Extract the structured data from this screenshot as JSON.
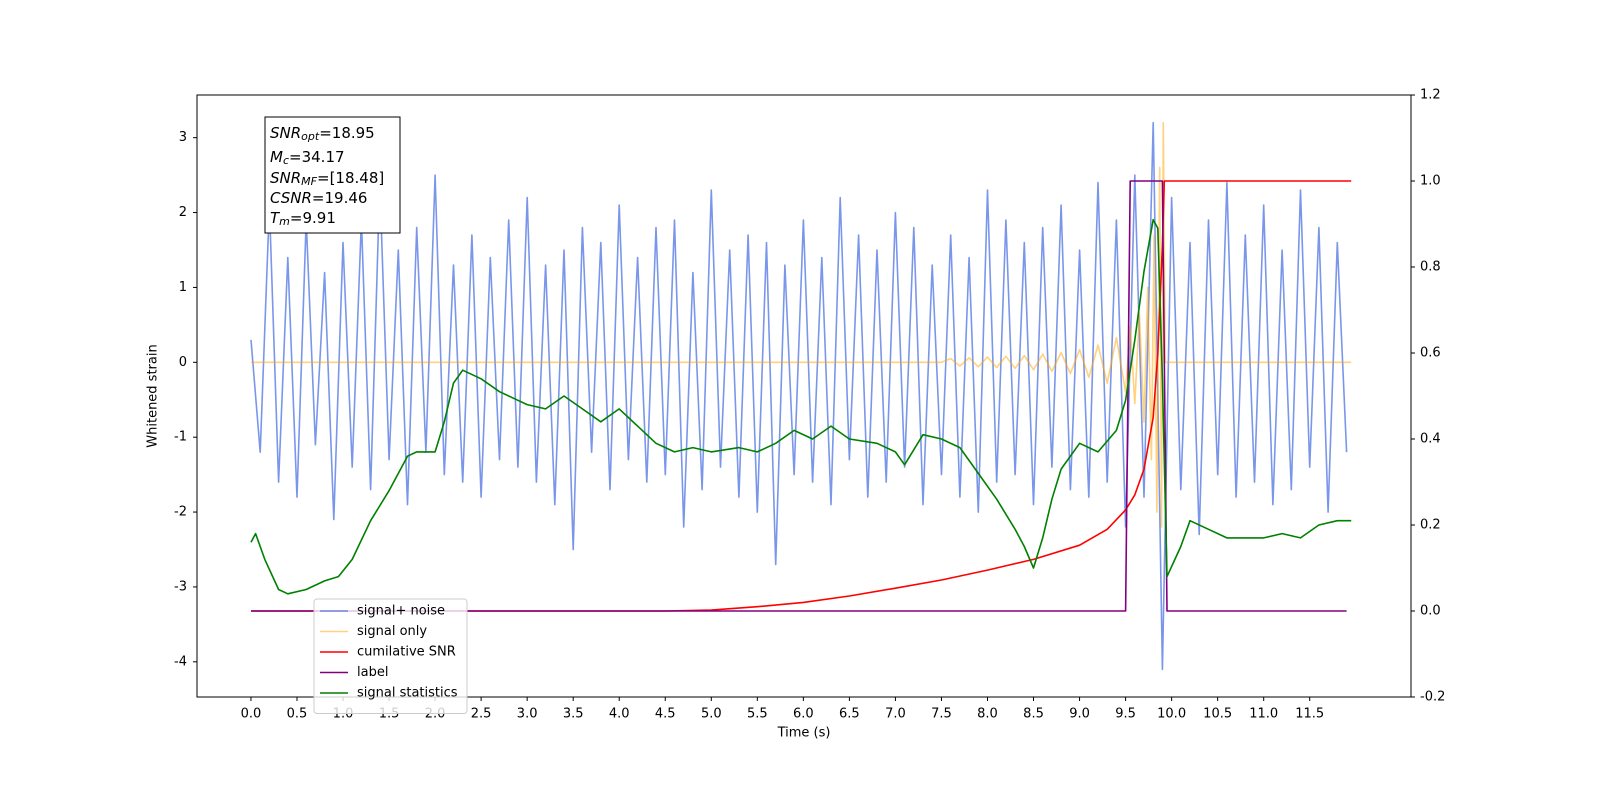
{
  "chart_data": {
    "type": "line",
    "xlabel": "Time (s)",
    "ylabel": "Whitened strain",
    "xlim": [
      -0.586,
      12.6
    ],
    "ylim": [
      -4.47,
      3.57
    ],
    "y2lim": [
      -0.2,
      1.2
    ],
    "xticks": [
      {
        "value": 0,
        "label": "0.0"
      },
      0.5,
      {
        "value": 1,
        "label": "1.0"
      },
      1.5,
      {
        "value": 2,
        "label": "2.0"
      },
      2.5,
      {
        "value": 3,
        "label": "3.0"
      },
      3.5,
      {
        "value": 4,
        "label": "4.0"
      },
      4.5,
      {
        "value": 5,
        "label": "5.0"
      },
      5.5,
      {
        "value": 6,
        "label": "6.0"
      },
      6.5,
      {
        "value": 7,
        "label": "7.0"
      },
      7.5,
      {
        "value": 8,
        "label": "8.0"
      },
      8.5,
      {
        "value": 9,
        "label": "9.0"
      },
      9.5,
      {
        "value": 10,
        "label": "10.0"
      },
      10.5,
      {
        "value": 11,
        "label": "11.0"
      },
      11.5
    ],
    "yticks": [
      -4,
      -3,
      -2,
      -1,
      0,
      1,
      2,
      3
    ],
    "y2ticks": [
      -0.2,
      {
        "value": 0,
        "label": "0.0"
      },
      0.2,
      0.4,
      0.6,
      0.8,
      {
        "value": 1,
        "label": "1.0"
      },
      1.2
    ],
    "legend": "lower left",
    "annotations": [
      {
        "name": "SNR",
        "sub": "opt",
        "text": "=18.95"
      },
      {
        "name": "M",
        "sub": "c",
        "text": "=34.17"
      },
      {
        "name": "SNR",
        "sub": "MF",
        "text": "=[18.48]"
      },
      {
        "name": "CSNR",
        "text": "=19.46"
      },
      {
        "name": "T",
        "sub": "m",
        "text": "=9.91"
      }
    ],
    "series": [
      {
        "name": "signal+ noise",
        "color": "#4169e1",
        "alpha": 0.7,
        "x": [
          0,
          0.1,
          0.2,
          0.3,
          0.4,
          0.5,
          0.6,
          0.7,
          0.8,
          0.9,
          1,
          1.1,
          1.2,
          1.3,
          1.4,
          1.5,
          1.6,
          1.7,
          1.8,
          1.9,
          2,
          2.1,
          2.2,
          2.3,
          2.4,
          2.5,
          2.6,
          2.7,
          2.8,
          2.9,
          3,
          3.1,
          3.2,
          3.3,
          3.4,
          3.5,
          3.6,
          3.7,
          3.8,
          3.9,
          4,
          4.1,
          4.2,
          4.3,
          4.4,
          4.5,
          4.6,
          4.7,
          4.8,
          4.9,
          5,
          5.1,
          5.2,
          5.3,
          5.4,
          5.5,
          5.6,
          5.7,
          5.8,
          5.9,
          6,
          6.1,
          6.2,
          6.3,
          6.4,
          6.5,
          6.6,
          6.7,
          6.8,
          6.9,
          7,
          7.1,
          7.2,
          7.3,
          7.4,
          7.5,
          7.6,
          7.7,
          7.8,
          7.9,
          8,
          8.1,
          8.2,
          8.3,
          8.4,
          8.5,
          8.6,
          8.7,
          8.8,
          8.9,
          9,
          9.1,
          9.2,
          9.3,
          9.4,
          9.5,
          9.6,
          9.7,
          9.8,
          9.9,
          10,
          10.1,
          10.2,
          10.3,
          10.4,
          10.5,
          10.6,
          10.7,
          10.8,
          10.9,
          11,
          11.1,
          11.2,
          11.3,
          11.4,
          11.5,
          11.6,
          11.7,
          11.8,
          11.9
        ],
        "values": [
          0.3,
          -1.2,
          2.1,
          -1.6,
          1.4,
          -1.8,
          1.9,
          -1.1,
          1.2,
          -2.1,
          1.6,
          -1.4,
          1.9,
          -1.7,
          2.4,
          -1.3,
          1.5,
          -1.9,
          1.8,
          -1.2,
          2.5,
          -1.5,
          1.3,
          -1.6,
          1.7,
          -1.8,
          1.4,
          -1.3,
          1.9,
          -1.4,
          2.2,
          -1.6,
          1.3,
          -1.9,
          1.5,
          -2.5,
          1.8,
          -1.2,
          1.6,
          -1.7,
          2.1,
          -1.3,
          1.4,
          -1.6,
          1.8,
          -1.5,
          1.9,
          -2.2,
          1.2,
          -1.7,
          2.3,
          -1.4,
          1.5,
          -1.8,
          1.7,
          -2.0,
          1.6,
          -2.7,
          1.3,
          -1.5,
          1.9,
          -1.6,
          1.4,
          -1.9,
          2.2,
          -1.3,
          1.7,
          -1.8,
          1.5,
          -1.6,
          2.0,
          -1.4,
          1.8,
          -1.9,
          1.3,
          -1.5,
          1.7,
          -1.8,
          1.4,
          -2.0,
          2.3,
          -1.6,
          1.9,
          -1.5,
          1.6,
          -1.9,
          1.8,
          -1.4,
          2.1,
          -1.7,
          1.5,
          -1.8,
          2.4,
          -1.6,
          1.9,
          -2.2,
          2.5,
          -1.8,
          3.2,
          -4.1,
          2.2,
          -1.7,
          1.6,
          -2.3,
          1.9,
          -1.5,
          2.4,
          -1.8,
          1.7,
          -1.6,
          2.1,
          -1.9,
          1.5,
          -1.7,
          2.3,
          -1.4,
          1.8,
          -2.0,
          1.6,
          -1.2
        ]
      },
      {
        "name": "signal only",
        "color": "#ffa500",
        "alpha": 0.5,
        "x": [
          0,
          7.5,
          7.6,
          7.7,
          7.8,
          7.9,
          8,
          8.1,
          8.2,
          8.3,
          8.4,
          8.5,
          8.6,
          8.7,
          8.8,
          8.9,
          9,
          9.1,
          9.2,
          9.3,
          9.4,
          9.5,
          9.55,
          9.6,
          9.65,
          9.7,
          9.74,
          9.78,
          9.81,
          9.84,
          9.87,
          9.89,
          9.91,
          9.93,
          11.95
        ],
        "values": [
          0,
          0,
          0.05,
          -0.05,
          0.06,
          -0.06,
          0.07,
          -0.07,
          0.08,
          -0.08,
          0.09,
          -0.1,
          0.11,
          -0.12,
          0.13,
          -0.15,
          0.17,
          -0.2,
          0.23,
          -0.28,
          0.33,
          -0.4,
          0.48,
          -0.55,
          0.65,
          -0.8,
          1.0,
          -1.3,
          1.7,
          -2.0,
          2.6,
          -2.2,
          3.2,
          0,
          0
        ]
      },
      {
        "name": "cumilative SNR",
        "color": "#ff0000",
        "axis": "y2",
        "x": [
          0,
          4.5,
          5,
          5.5,
          6,
          6.5,
          7,
          7.5,
          8,
          8.5,
          9,
          9.3,
          9.5,
          9.6,
          9.7,
          9.8,
          9.85,
          9.9,
          9.92,
          11.95
        ],
        "values": [
          0,
          0,
          0.002,
          0.01,
          0.02,
          0.035,
          0.053,
          0.072,
          0.095,
          0.12,
          0.153,
          0.19,
          0.235,
          0.27,
          0.33,
          0.45,
          0.6,
          0.85,
          1.0,
          1.0
        ]
      },
      {
        "name": "label",
        "color": "#800080",
        "axis": "y2",
        "x": [
          0,
          9.5,
          9.55,
          9.9,
          9.95,
          11.9
        ],
        "values": [
          0,
          0,
          1,
          1,
          0,
          0
        ]
      },
      {
        "name": "signal statistics",
        "color": "#008000",
        "axis": "y2",
        "x": [
          0,
          0.05,
          0.15,
          0.3,
          0.4,
          0.6,
          0.8,
          0.95,
          1.1,
          1.3,
          1.5,
          1.7,
          1.8,
          2.0,
          2.1,
          2.2,
          2.3,
          2.5,
          2.7,
          2.9,
          3.0,
          3.2,
          3.4,
          3.6,
          3.8,
          4.0,
          4.2,
          4.4,
          4.6,
          4.8,
          5.0,
          5.3,
          5.5,
          5.7,
          5.9,
          6.1,
          6.3,
          6.5,
          6.8,
          7.0,
          7.1,
          7.3,
          7.5,
          7.7,
          7.9,
          8.1,
          8.3,
          8.4,
          8.5,
          8.6,
          8.7,
          8.8,
          9.0,
          9.2,
          9.4,
          9.5,
          9.6,
          9.7,
          9.8,
          9.85,
          9.9,
          9.95,
          10.1,
          10.2,
          10.4,
          10.6,
          10.8,
          11.0,
          11.2,
          11.4,
          11.6,
          11.8,
          11.95
        ],
        "values": [
          0.16,
          0.18,
          0.12,
          0.05,
          0.04,
          0.05,
          0.07,
          0.08,
          0.12,
          0.21,
          0.28,
          0.36,
          0.37,
          0.37,
          0.44,
          0.53,
          0.56,
          0.54,
          0.51,
          0.49,
          0.48,
          0.47,
          0.5,
          0.47,
          0.44,
          0.47,
          0.43,
          0.39,
          0.37,
          0.38,
          0.37,
          0.38,
          0.37,
          0.39,
          0.42,
          0.4,
          0.43,
          0.4,
          0.39,
          0.37,
          0.34,
          0.41,
          0.4,
          0.38,
          0.32,
          0.26,
          0.19,
          0.15,
          0.1,
          0.17,
          0.26,
          0.33,
          0.39,
          0.37,
          0.42,
          0.49,
          0.63,
          0.79,
          0.91,
          0.89,
          0.54,
          0.08,
          0.15,
          0.21,
          0.19,
          0.17,
          0.17,
          0.17,
          0.18,
          0.17,
          0.2,
          0.21,
          0.21
        ]
      }
    ]
  }
}
